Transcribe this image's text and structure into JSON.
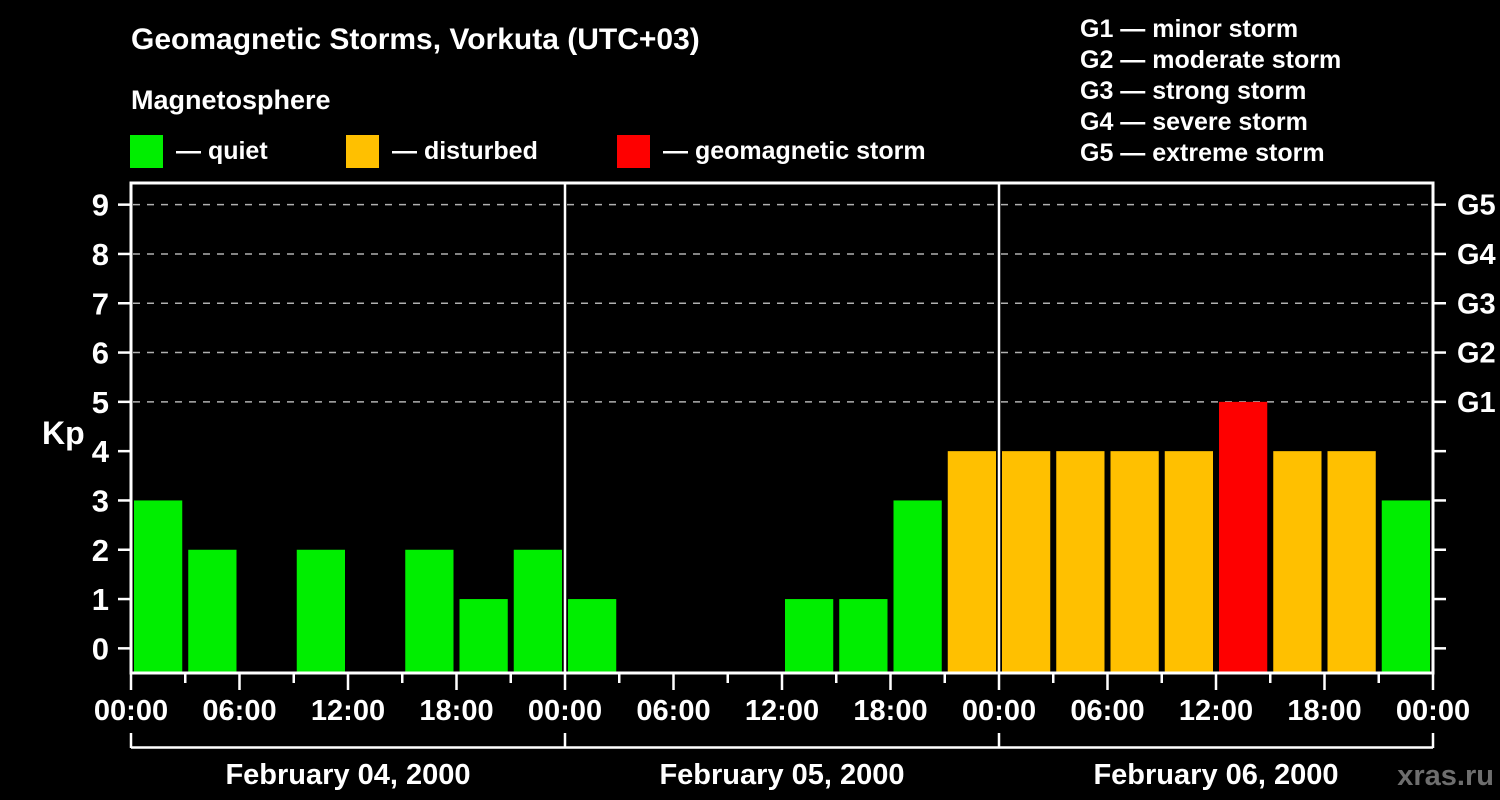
{
  "header": {
    "title": "Geomagnetic Storms, Vorkuta (UTC+03)",
    "subtitle": "Magnetosphere",
    "kp_legend": [
      {
        "name": "quiet",
        "label": "— quiet",
        "color": "#00ee00"
      },
      {
        "name": "disturbed",
        "label": "— disturbed",
        "color": "#ffc000"
      },
      {
        "name": "storm",
        "label": "— geomagnetic storm",
        "color": "#fe0000"
      }
    ],
    "g_scale_legend": [
      "G1 — minor storm",
      "G2 — moderate storm",
      "G3 — strong storm",
      "G4 — severe storm",
      "G5 — extreme storm"
    ]
  },
  "watermark": "xras.ru",
  "chart_data": {
    "type": "bar",
    "title": "Geomagnetic Storms, Vorkuta (UTC+03)",
    "subtitle": "Magnetosphere",
    "ylabel": "Kp",
    "ylim": [
      -0.5,
      9.4
    ],
    "y_ticks": [
      0,
      1,
      2,
      3,
      4,
      5,
      6,
      7,
      8,
      9
    ],
    "gridlines_at_kp": [
      5,
      6,
      7,
      8,
      9
    ],
    "grid": "dashed horizontal lines at Kp 5–9 only",
    "right_axis": [
      {
        "kp": 5,
        "label": "G1"
      },
      {
        "kp": 6,
        "label": "G2"
      },
      {
        "kp": 7,
        "label": "G3"
      },
      {
        "kp": 8,
        "label": "G4"
      },
      {
        "kp": 9,
        "label": "G5"
      }
    ],
    "hours_per_bar": 3,
    "minor_tick_every_hours": 3,
    "major_tick_every_hours": 6,
    "x_major_tick_labels": [
      "00:00",
      "06:00",
      "12:00",
      "18:00",
      "00:00",
      "06:00",
      "12:00",
      "18:00",
      "00:00",
      "06:00",
      "12:00",
      "18:00",
      "00:00"
    ],
    "days": [
      {
        "date": "February 04, 2000",
        "kp": [
          3,
          2,
          0,
          2,
          0,
          2,
          1,
          2
        ]
      },
      {
        "date": "February 05, 2000",
        "kp": [
          1,
          0,
          0,
          0,
          1,
          1,
          3,
          4
        ]
      },
      {
        "date": "February 06, 2000",
        "kp": [
          4,
          4,
          4,
          4,
          5,
          4,
          4,
          3
        ]
      }
    ],
    "color_rule": {
      "quiet": "Kp 0–3",
      "disturbed": "Kp 4",
      "storm": "Kp 5–9"
    },
    "colors": {
      "quiet": "#00ee00",
      "disturbed": "#ffc000",
      "storm": "#fe0000",
      "gridline": "#b0b0b0",
      "axis": "#ffffff"
    },
    "legend_position": "top-left"
  }
}
